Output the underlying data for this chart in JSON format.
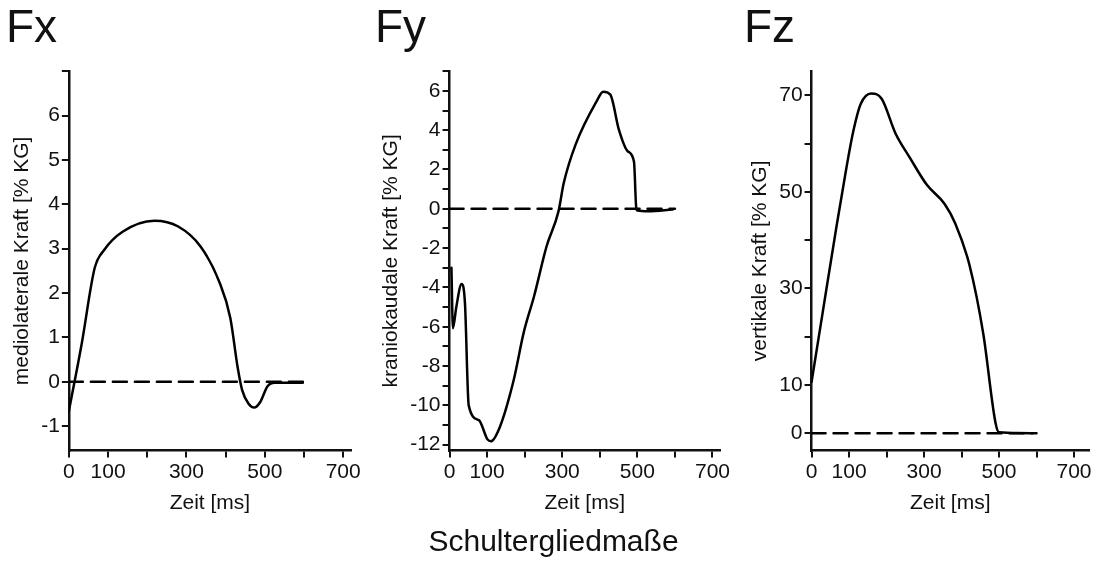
{
  "chart_data": [
    {
      "type": "line",
      "title": "Fx",
      "xlabel": "Zeit [ms]",
      "ylabel": "mediolaterale Kraft [% KG]",
      "xlim": [
        0,
        720
      ],
      "ylim": [
        -1.55,
        7
      ],
      "xticks": [
        0,
        100,
        {
          "value": 200,
          "label": null
        },
        300,
        {
          "value": 400,
          "label": null
        },
        500,
        {
          "value": 600,
          "label": null
        },
        700
      ],
      "yticks": [
        -1,
        0,
        1,
        2,
        3,
        4,
        5,
        6,
        {
          "value": 7,
          "label": null
        }
      ],
      "grid": false,
      "legend": false,
      "marker": "none",
      "series": [
        {
          "color": "#000000",
          "line_style": "solid",
          "x": [
            0,
            33,
            66,
            90,
            137,
            218,
            279,
            336,
            384,
            412,
            431,
            442,
            459,
            473,
            488,
            507,
            525,
            597
          ],
          "values": [
            -0.66,
            0.87,
            2.57,
            2.97,
            3.38,
            3.63,
            3.5,
            3.05,
            2.25,
            1.44,
            0.31,
            -0.18,
            -0.5,
            -0.58,
            -0.46,
            -0.1,
            -0.02,
            -0.02
          ]
        },
        {
          "type": "line",
          "color": "#000000",
          "line_style": "dashed",
          "x": [
            0,
            600
          ],
          "values": [
            0,
            0
          ]
        }
      ]
    },
    {
      "type": "line",
      "title": "Fy",
      "xlabel": "Zeit [ms]",
      "ylabel": "kraniokaudale Kraft [% KG]",
      "xlim": [
        0,
        720
      ],
      "ylim": [
        -12.3,
        7
      ],
      "xticks": [
        0,
        100,
        {
          "value": 200,
          "label": null
        },
        300,
        {
          "value": 400,
          "label": null
        },
        500,
        {
          "value": 600,
          "label": null
        },
        700
      ],
      "yticks": [
        -12,
        {
          "value": -11,
          "label": null
        },
        -10,
        {
          "value": -9,
          "label": null
        },
        -8,
        {
          "value": -7,
          "label": null
        },
        -6,
        {
          "value": -5,
          "label": null
        },
        -4,
        {
          "value": -3,
          "label": null
        },
        -2,
        {
          "value": -1,
          "label": null
        },
        0,
        {
          "value": 1,
          "label": null
        },
        2,
        {
          "value": 3,
          "label": null
        },
        4,
        {
          "value": 5,
          "label": null
        },
        6,
        {
          "value": 7,
          "label": null
        }
      ],
      "grid": false,
      "legend": false,
      "marker": "none",
      "annotations": [
        "Schultergliedmaße"
      ],
      "series": [
        {
          "color": "#000000",
          "line_style": "solid",
          "x": [
            5,
            9,
            18,
            32,
            41,
            51,
            78,
            101,
            110,
            134,
            170,
            198,
            225,
            258,
            290,
            304,
            336,
            391,
            409,
            428,
            451,
            474,
            491,
            497,
            500,
            529,
            594
          ],
          "values": [
            -3.0,
            -6.07,
            -4.99,
            -3.82,
            -4.8,
            -10.0,
            -10.75,
            -11.73,
            -11.83,
            -11.1,
            -8.77,
            -6.25,
            -4.45,
            -1.93,
            -0.13,
            1.31,
            3.29,
            5.45,
            5.96,
            5.81,
            4.01,
            2.93,
            2.39,
            0.05,
            -0.09,
            -0.13,
            -0.04
          ]
        },
        {
          "type": "line",
          "color": "#000000",
          "line_style": "dashed",
          "x": [
            0,
            600
          ],
          "values": [
            0,
            0
          ]
        }
      ]
    },
    {
      "type": "line",
      "title": "Fz",
      "xlabel": "Zeit [ms]",
      "ylabel": "vertikale Kraft [% KG]",
      "xlim": [
        0,
        740
      ],
      "ylim": [
        -3.6,
        75
      ],
      "xticks": [
        0,
        100,
        {
          "value": 200,
          "label": null
        },
        300,
        {
          "value": 400,
          "label": null
        },
        500,
        {
          "value": 600,
          "label": null
        },
        700
      ],
      "yticks": [
        0,
        10,
        {
          "value": 20,
          "label": null
        },
        30,
        {
          "value": 40,
          "label": null
        },
        50,
        {
          "value": 60,
          "label": null
        },
        70
      ],
      "grid": false,
      "legend": false,
      "marker": "none",
      "series": [
        {
          "color": "#000000",
          "line_style": "solid",
          "x": [
            0,
            28,
            65,
            93,
            112,
            131,
            159,
            187,
            224,
            262,
            308,
            355,
            383,
            421,
            458,
            491,
            500,
            589
          ],
          "values": [
            10.6,
            24.2,
            42.1,
            55.0,
            62.8,
            68.2,
            70.4,
            69.3,
            62.1,
            57.1,
            51.4,
            47.5,
            43.5,
            34.9,
            20.6,
            2.0,
            0.2,
            0
          ]
        },
        {
          "type": "line",
          "color": "#000000",
          "line_style": "dashed",
          "x": [
            0,
            600
          ],
          "values": [
            0,
            0
          ]
        }
      ]
    }
  ]
}
